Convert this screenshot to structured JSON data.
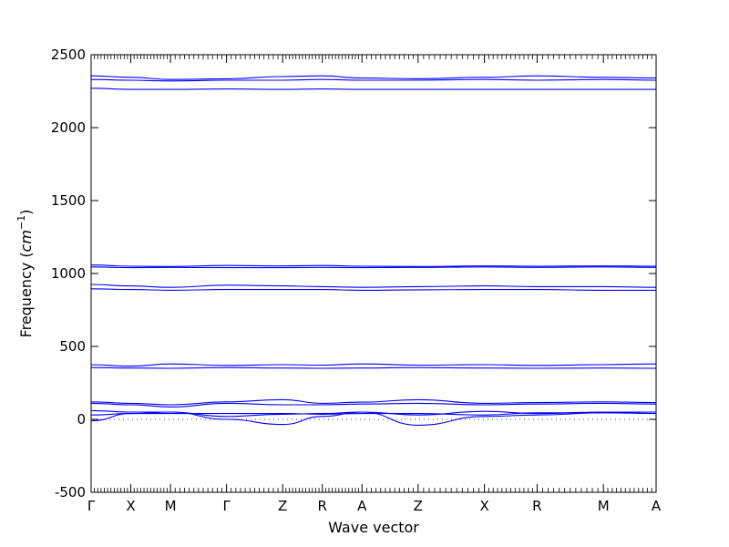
{
  "chart_data": {
    "type": "line",
    "title": "",
    "xlabel": "Wave vector",
    "ylabel": "Frequency (cm⁻¹)",
    "ylabel_parts": {
      "main": "Frequency (",
      "unit": "cm",
      "exp": "−1",
      "close": ")"
    },
    "ylim": [
      -500,
      2500
    ],
    "yticks": [
      -500,
      0,
      500,
      1000,
      1500,
      2000,
      2500
    ],
    "x_path_labels": [
      "Γ",
      "X",
      "M",
      "Γ",
      "Z",
      "R",
      "A",
      "Z",
      "X",
      "R",
      "M",
      "A"
    ],
    "x_path_positions": [
      0.0,
      0.5,
      1.0,
      1.707,
      2.414,
      2.914,
      3.414,
      4.121,
      4.957,
      5.621,
      6.457,
      7.121
    ],
    "xlim": [
      0.0,
      7.121
    ],
    "grid": false,
    "legend": "none",
    "line_color": "#0000ff",
    "zero_line": {
      "y": 0,
      "style": "dotted"
    },
    "series": [
      {
        "values": [
          2355,
          2345,
          2330,
          2335,
          2350,
          2355,
          2340,
          2335,
          2345,
          2355,
          2345,
          2340
        ]
      },
      {
        "values": [
          2330,
          2325,
          2320,
          2325,
          2325,
          2330,
          2325,
          2325,
          2330,
          2325,
          2330,
          2325
        ]
      },
      {
        "values": [
          2270,
          2262,
          2262,
          2265,
          2262,
          2265,
          2262,
          2262,
          2262,
          2262,
          2262,
          2262
        ]
      },
      {
        "values": [
          1058,
          1050,
          1048,
          1055,
          1052,
          1055,
          1050,
          1048,
          1052,
          1050,
          1052,
          1050
        ]
      },
      {
        "values": [
          1045,
          1040,
          1042,
          1040,
          1040,
          1042,
          1040,
          1042,
          1045,
          1042,
          1045,
          1042
        ]
      },
      {
        "values": [
          925,
          915,
          905,
          920,
          915,
          910,
          905,
          910,
          915,
          910,
          910,
          905
        ]
      },
      {
        "values": [
          895,
          890,
          885,
          890,
          890,
          890,
          885,
          888,
          890,
          890,
          885,
          885
        ]
      },
      {
        "values": [
          375,
          365,
          380,
          370,
          375,
          372,
          380,
          372,
          375,
          370,
          375,
          380
        ]
      },
      {
        "values": [
          355,
          352,
          350,
          355,
          352,
          350,
          352,
          355,
          352,
          350,
          352,
          350
        ]
      },
      {
        "values": [
          120,
          110,
          100,
          120,
          135,
          110,
          118,
          135,
          110,
          115,
          120,
          115
        ]
      },
      {
        "values": [
          110,
          100,
          85,
          110,
          100,
          100,
          105,
          110,
          100,
          105,
          110,
          105
        ]
      },
      {
        "values": [
          60,
          50,
          50,
          20,
          35,
          40,
          50,
          30,
          55,
          40,
          50,
          50
        ]
      },
      {
        "values": [
          -10,
          40,
          40,
          40,
          40,
          35,
          40,
          40,
          30,
          45,
          45,
          40
        ]
      },
      {
        "values": [
          30,
          40,
          50,
          0,
          -35,
          20,
          50,
          -40,
          20,
          30,
          45,
          50
        ]
      }
    ]
  }
}
